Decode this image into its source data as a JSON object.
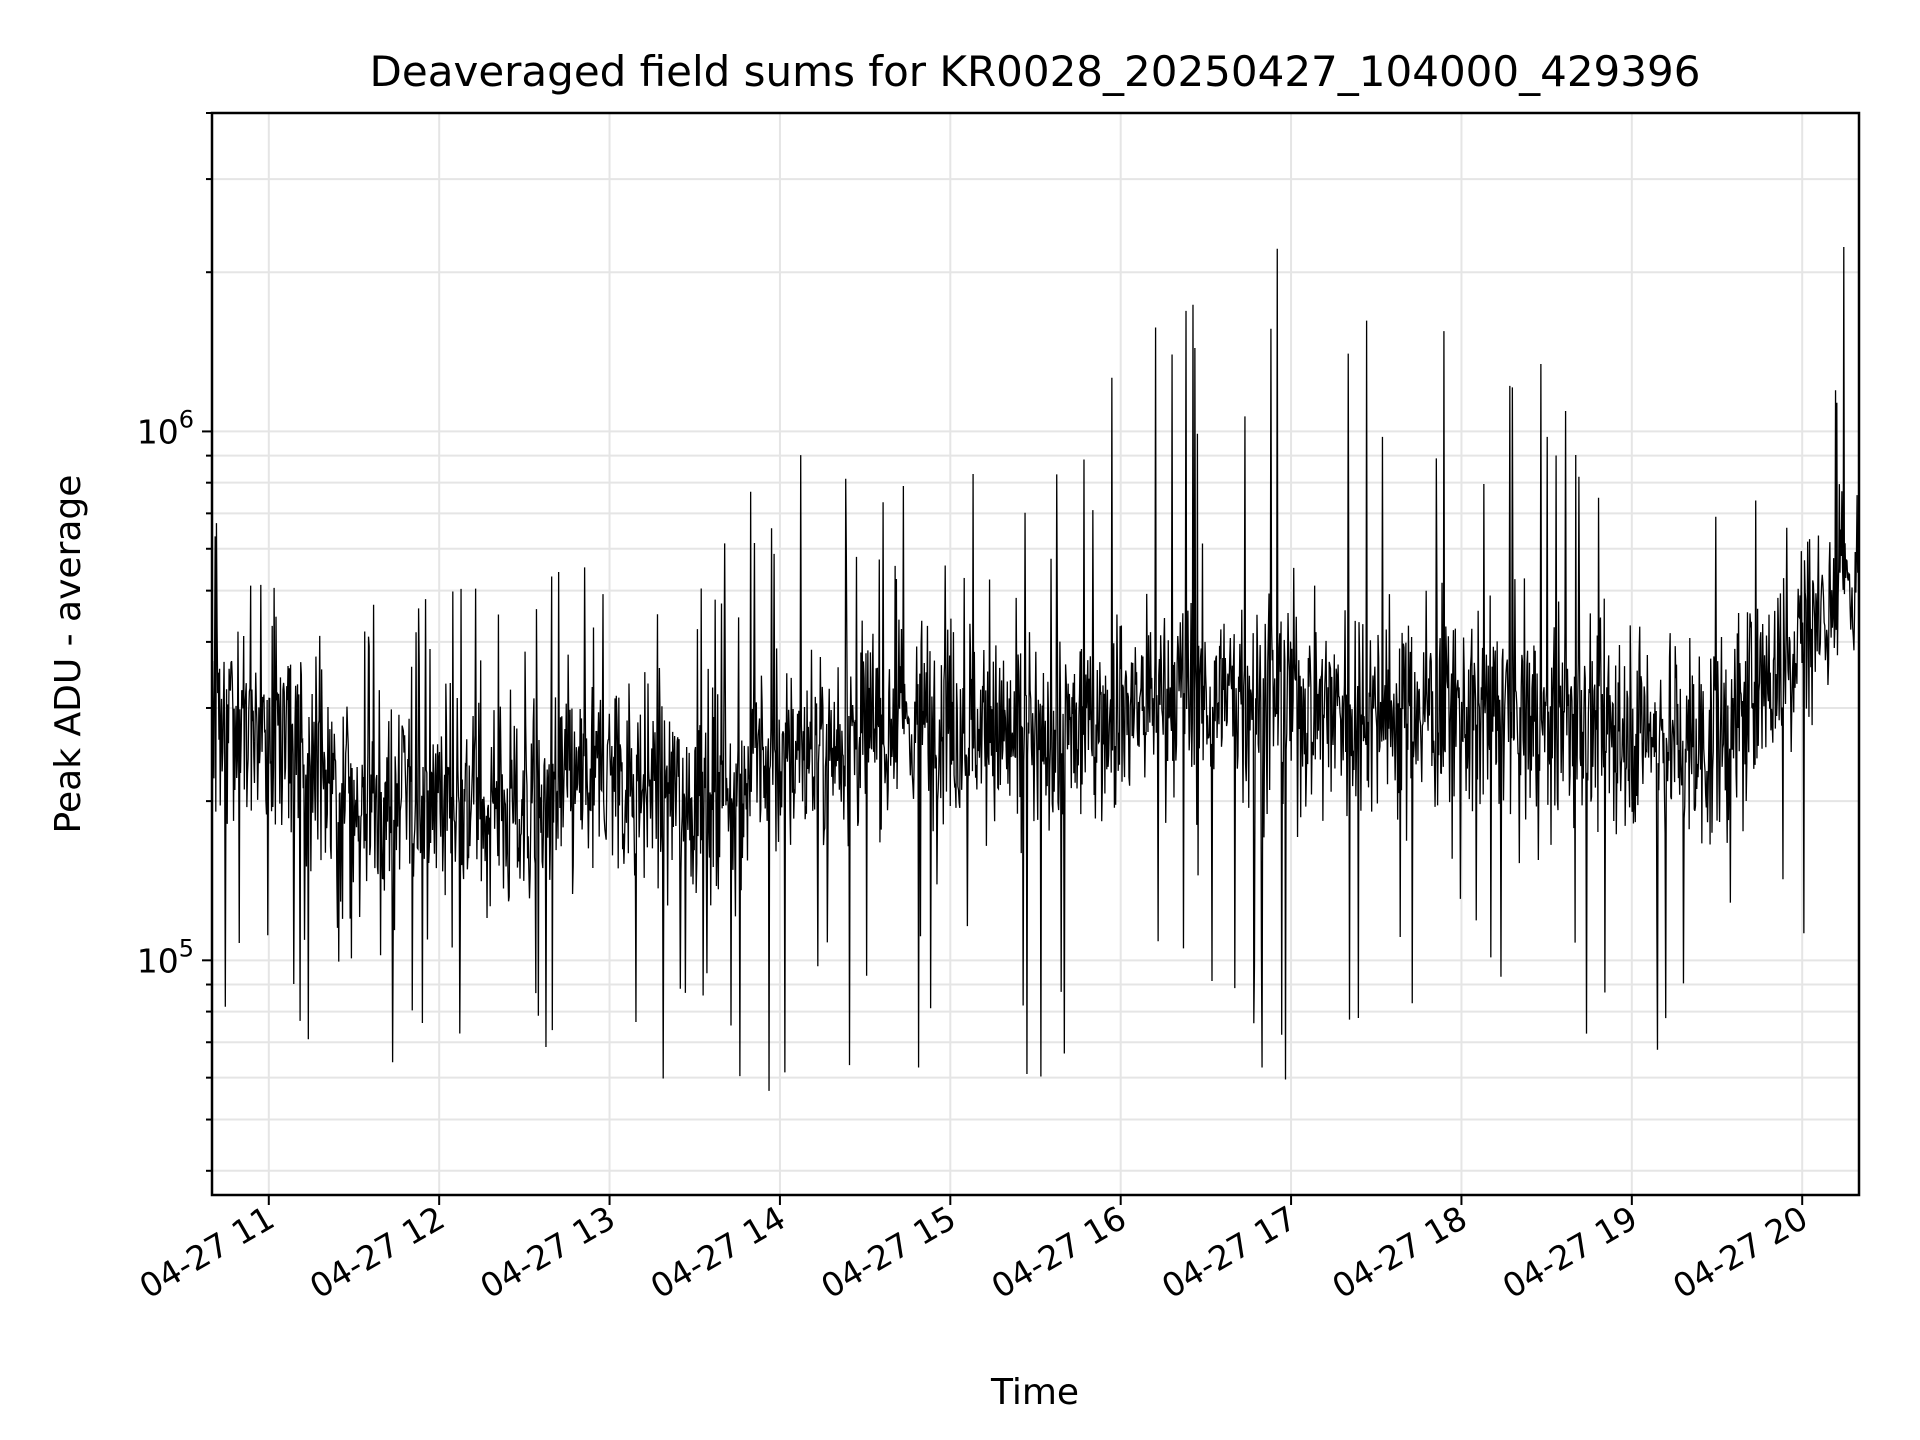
{
  "chart_data": {
    "type": "line",
    "title": "Deaveraged field sums for KR0028_20250427_104000_429396",
    "xlabel": "Time",
    "ylabel": "Peak ADU - average",
    "x_axis_type": "datetime",
    "x_tick_labels": [
      "04-27 11",
      "04-27 12",
      "04-27 13",
      "04-27 14",
      "04-27 15",
      "04-27 16",
      "04-27 17",
      "04-27 18",
      "04-27 19",
      "04-27 20"
    ],
    "y_scale": "log",
    "y_tick_values": [
      100000,
      1000000
    ],
    "ylim": [
      36000,
      4000000
    ],
    "xlim": [
      "2025-04-27 10:40",
      "2025-04-27 20:20"
    ],
    "grid": true,
    "line_color": "#000000",
    "series": [
      {
        "x": [
          "2025-04-27 10:40",
          "2025-04-27 11:00",
          "2025-04-27 11:30",
          "2025-04-27 12:00",
          "2025-04-27 12:30",
          "2025-04-27 13:00",
          "2025-04-27 13:30",
          "2025-04-27 14:00",
          "2025-04-27 14:30",
          "2025-04-27 15:00",
          "2025-04-27 15:30",
          "2025-04-27 16:00",
          "2025-04-27 16:30",
          "2025-04-27 17:00",
          "2025-04-27 17:30",
          "2025-04-27 18:00",
          "2025-04-27 18:30",
          "2025-04-27 19:00",
          "2025-04-27 19:30",
          "2025-04-27 20:00",
          "2025-04-27 20:20"
        ],
        "values": [
          260000,
          280000,
          190000,
          210000,
          190000,
          230000,
          200000,
          240000,
          270000,
          290000,
          250000,
          300000,
          320000,
          310000,
          300000,
          300000,
          280000,
          280000,
          250000,
          420000,
          550000
        ]
      }
    ],
    "upper_envelope": [
      700000,
      700000,
      500000,
      600000,
      600000,
      650000,
      650000,
      950000,
      800000,
      800000,
      1000000,
      1600000,
      1900000,
      2300000,
      2000000,
      1900000,
      1500000,
      1300000,
      1000000,
      900000,
      3200000
    ],
    "lower_envelope": [
      70000,
      60000,
      60000,
      65000,
      65000,
      48000,
      50000,
      52000,
      55000,
      60000,
      55000,
      70000,
      80000,
      50000,
      70000,
      90000,
      80000,
      65000,
      70000,
      100000,
      250000
    ]
  }
}
